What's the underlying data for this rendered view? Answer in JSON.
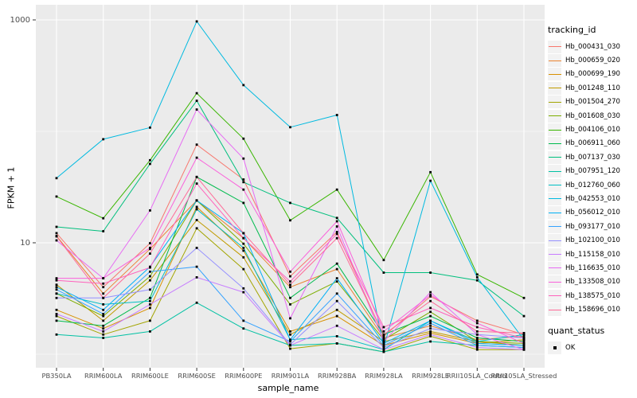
{
  "figure": {
    "colors": {
      "panel_bg": "#EBEBEB",
      "grid_major": "#FFFFFF",
      "grid_minor": "#F7F7F7",
      "axis_text": "#4D4D4D",
      "tick_mark": "#333333",
      "marker": "#000000",
      "legend_key_bg": "#F2F2F2"
    }
  },
  "chart_data": {
    "type": "line",
    "title": "",
    "xlabel": "sample_name",
    "ylabel": "FPKM + 1",
    "y_scale": "log10",
    "ylim": [
      1,
      1100
    ],
    "grid": "on",
    "legend_position": "right",
    "legend_title": "tracking_id",
    "point_legend": {
      "title": "quant_status",
      "label": "OK"
    },
    "y_ticks": [
      {
        "value": 1000,
        "label": "1000"
      },
      {
        "value": 10,
        "label": "10"
      }
    ],
    "y_minor": [
      100,
      1
    ],
    "x_categories": [
      "PB350LA",
      "RRIM600LA",
      "RRIM600LE",
      "RRIM600SE",
      "RRIM600PE",
      "RRIM901LA",
      "RRIM928BA",
      "RRIM928LA",
      "RRIM928LE",
      "RRII105LA_Control",
      "RRII105LA_Stressed"
    ],
    "series": [
      {
        "name": "Hb_000431_030",
        "color": "#F8766D",
        "values": [
          12.2,
          4.0,
          9.9,
          76,
          37,
          5.0,
          12.5,
          1.45,
          3.3,
          2.0,
          1.5
        ]
      },
      {
        "name": "Hb_000659_020",
        "color": "#EA8331",
        "values": [
          11.5,
          3.5,
          8.8,
          24,
          11,
          4.0,
          5.8,
          1.4,
          1.8,
          1.35,
          1.45
        ]
      },
      {
        "name": "Hb_000699_190",
        "color": "#D89000",
        "values": [
          2.5,
          1.7,
          2.6,
          21,
          8.5,
          1.6,
          2.2,
          1.2,
          1.55,
          1.25,
          1.35
        ]
      },
      {
        "name": "Hb_001248_110",
        "color": "#C09B00",
        "values": [
          4.2,
          2.0,
          4.6,
          16,
          7.4,
          1.5,
          2.5,
          1.3,
          1.6,
          1.3,
          1.2
        ]
      },
      {
        "name": "Hb_001504_270",
        "color": "#A3A500",
        "values": [
          2.2,
          1.5,
          2.0,
          13.5,
          5.8,
          1.12,
          1.25,
          1.05,
          1.45,
          1.1,
          1.1
        ]
      },
      {
        "name": "Hb_001608_030",
        "color": "#7CAE00",
        "values": [
          3.5,
          2.2,
          5.0,
          24,
          9.8,
          2.8,
          4.5,
          1.35,
          2.4,
          1.3,
          1.25
        ]
      },
      {
        "name": "Hb_004106_010",
        "color": "#39B600",
        "values": [
          26,
          16.6,
          55,
          220,
          86,
          15.9,
          30,
          7.0,
          43,
          5.2,
          3.2
        ]
      },
      {
        "name": "Hb_006911_060",
        "color": "#00BB4E",
        "values": [
          2.0,
          1.8,
          3.2,
          39,
          22.8,
          3.2,
          6.5,
          1.5,
          2.2,
          1.4,
          1.3
        ]
      },
      {
        "name": "Hb_007137_030",
        "color": "#00BF7D",
        "values": [
          13.9,
          12.7,
          51,
          188,
          35,
          22.8,
          16.7,
          5.4,
          5.4,
          4.6,
          2.2
        ]
      },
      {
        "name": "Hb_007951_120",
        "color": "#00C1A3",
        "values": [
          1.5,
          1.4,
          1.6,
          2.9,
          1.7,
          1.2,
          1.25,
          1.05,
          1.3,
          1.2,
          1.15
        ]
      },
      {
        "name": "Hb_012760_060",
        "color": "#00BFC4",
        "values": [
          3.5,
          2.8,
          3.0,
          20,
          9.0,
          1.35,
          1.45,
          1.1,
          2.0,
          1.3,
          1.5
        ]
      },
      {
        "name": "Hb_042553_010",
        "color": "#00BAE0",
        "values": [
          38,
          85,
          108,
          970,
          260,
          109,
          140,
          1.15,
          36,
          4.9,
          1.35
        ]
      },
      {
        "name": "Hb_056012_010",
        "color": "#00B0F6",
        "values": [
          4.0,
          2.5,
          6.1,
          24,
          12.2,
          1.35,
          4.8,
          1.25,
          2.0,
          1.25,
          1.2
        ]
      },
      {
        "name": "Hb_093177_010",
        "color": "#35A2FF",
        "values": [
          3.8,
          2.3,
          5.5,
          6.1,
          2.0,
          1.3,
          3.5,
          1.2,
          1.9,
          1.2,
          1.15
        ]
      },
      {
        "name": "Hb_102100_010",
        "color": "#9590FF",
        "values": [
          3.2,
          3.2,
          3.8,
          9.0,
          3.9,
          1.22,
          3.0,
          1.15,
          1.7,
          1.5,
          1.4
        ]
      },
      {
        "name": "Hb_115158_010",
        "color": "#C77CFF",
        "values": [
          2.3,
          1.6,
          2.8,
          4.9,
          3.6,
          1.2,
          1.8,
          1.1,
          1.5,
          1.15,
          1.1
        ]
      },
      {
        "name": "Hb_116635_010",
        "color": "#E76BF3",
        "values": [
          10.5,
          4.8,
          19.5,
          157,
          57,
          2.1,
          14,
          1.3,
          3.6,
          1.5,
          1.1
        ]
      },
      {
        "name": "Hb_133508_010",
        "color": "#FA62DB",
        "values": [
          4.8,
          4.8,
          9.0,
          58,
          30,
          5.5,
          15.6,
          1.6,
          3.4,
          1.9,
          1.25
        ]
      },
      {
        "name": "Hb_138575_010",
        "color": "#FF62BC",
        "values": [
          4.6,
          4.3,
          6.0,
          34,
          11,
          4.5,
          12,
          1.75,
          2.6,
          1.75,
          1.4
        ]
      },
      {
        "name": "Hb_158696_010",
        "color": "#FF6A98",
        "values": [
          11.4,
          3.2,
          8.0,
          39,
          12.2,
          4.2,
          11,
          1.5,
          3.0,
          1.6,
          1.55
        ]
      }
    ]
  }
}
